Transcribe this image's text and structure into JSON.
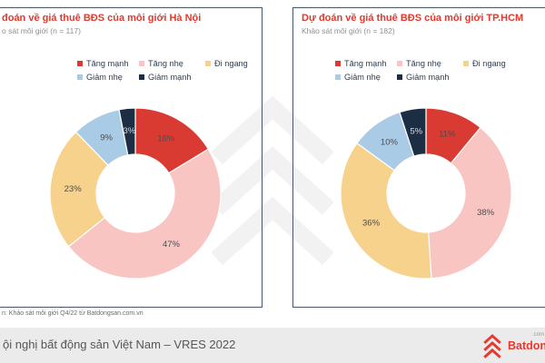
{
  "panels": [
    {
      "title": "đoán về giá thuê BĐS của môi giới Hà Nội",
      "subtitle": "o sát môi giới (n = 117)"
    },
    {
      "title": "Dự đoán về giá thuê BĐS của môi giới TP.HCM",
      "subtitle": "Khảo sát môi giới (n = 182)"
    }
  ],
  "legend": {
    "items": [
      {
        "label": "Tăng mạnh",
        "color": "#d93a31"
      },
      {
        "label": "Tăng nhẹ",
        "color": "#f9c5c3"
      },
      {
        "label": "Đi ngang",
        "color": "#f7d28c"
      },
      {
        "label": "Giảm nhẹ",
        "color": "#a9cbe6"
      },
      {
        "label": "Giảm mạnh",
        "color": "#1b2e44"
      }
    ]
  },
  "chart_data": [
    {
      "type": "pie",
      "subtype": "donut",
      "title": "đoán về giá thuê BĐS của môi giới Hà Nội",
      "survey_label": "o sát môi giới (n = 117)",
      "sample_n": 117,
      "categories": [
        "Tăng mạnh",
        "Tăng nhẹ",
        "Đi ngang",
        "Giảm nhẹ",
        "Giảm mạnh"
      ],
      "values": [
        16,
        47,
        23,
        9,
        3
      ],
      "unit": "%",
      "labels": [
        "16%",
        "47%",
        "23%",
        "9%",
        "3%"
      ],
      "colors": [
        "#d93a31",
        "#f9c5c3",
        "#f7d28c",
        "#a9cbe6",
        "#1b2e44"
      ],
      "label_colors": [
        "#4d4d4d",
        "#4d4d4d",
        "#4d4d4d",
        "#4d4d4d",
        "#d8dce0"
      ],
      "legend_position": "top",
      "start_angle_deg": 0,
      "direction": "clockwise"
    },
    {
      "type": "pie",
      "subtype": "donut",
      "title": "Dự đoán về giá thuê BĐS của môi giới TP.HCM",
      "survey_label": "Khảo sát môi giới (n = 182)",
      "sample_n": 182,
      "categories": [
        "Tăng mạnh",
        "Tăng nhẹ",
        "Đi ngang",
        "Giảm nhẹ",
        "Giảm mạnh"
      ],
      "values": [
        11,
        38,
        36,
        10,
        5
      ],
      "unit": "%",
      "labels": [
        "11%",
        "38%",
        "36%",
        "10%",
        "5%"
      ],
      "colors": [
        "#d93a31",
        "#f9c5c3",
        "#f7d28c",
        "#a9cbe6",
        "#1b2e44"
      ],
      "label_colors": [
        "#4d4d4d",
        "#4d4d4d",
        "#4d4d4d",
        "#4d4d4d",
        "#d8dce0"
      ],
      "legend_position": "top",
      "start_angle_deg": 0,
      "direction": "clockwise"
    }
  ],
  "source_note": "n: Khảo sát môi giới Q4/22 từ Batdongsan.com.vn",
  "footer": {
    "text": "ội nghị bất động sản Việt Nam – VRES 2022"
  },
  "brand": {
    "name": "Batdongsan",
    "suffix": ".com",
    "color": "#e8392f"
  }
}
